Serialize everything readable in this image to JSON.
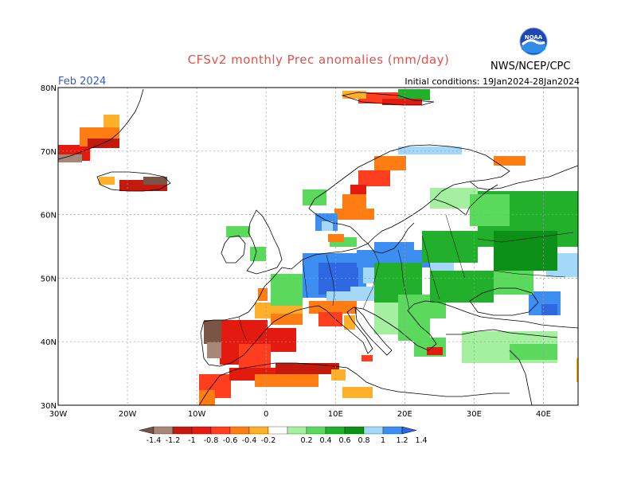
{
  "header": {
    "title": "CFSv2 monthly Prec anomalies (mm/day)",
    "month": "Feb 2024",
    "initial_conditions": "Initial conditions: 19Jan2024-28Jan2024",
    "agency": "NWS/NCEP/CPC",
    "logo_text": "NOAA"
  },
  "map": {
    "lat_labels": [
      "80N",
      "70N",
      "60N",
      "50N",
      "40N",
      "30N"
    ],
    "lon_labels": [
      "30W",
      "20W",
      "10W",
      "0",
      "10E",
      "20E",
      "30E",
      "40E"
    ],
    "lat_values": [
      80,
      70,
      60,
      50,
      40,
      30
    ],
    "lon_values": [
      -30,
      -20,
      -10,
      0,
      10,
      20,
      30,
      40
    ],
    "lon_range": [
      -30,
      45
    ],
    "lat_range": [
      30,
      80
    ]
  },
  "legend": {
    "labels": [
      "-1.4",
      "-1.2",
      "-1",
      "-0.8",
      "-0.6",
      "-0.4",
      "-0.2",
      "0.2",
      "0.4",
      "0.6",
      "0.8",
      "1",
      "1.2",
      "1.4"
    ],
    "colors": [
      "#7a5545",
      "#a88678",
      "#c41a0d",
      "#e21a10",
      "#ff3e1f",
      "#ff7d12",
      "#ffb02a",
      "#ffffff",
      "#a4f0a0",
      "#5ad95c",
      "#22b02c",
      "#0c9018",
      "#a4d8f8",
      "#3c8ef0",
      "#2e67e0"
    ]
  }
}
